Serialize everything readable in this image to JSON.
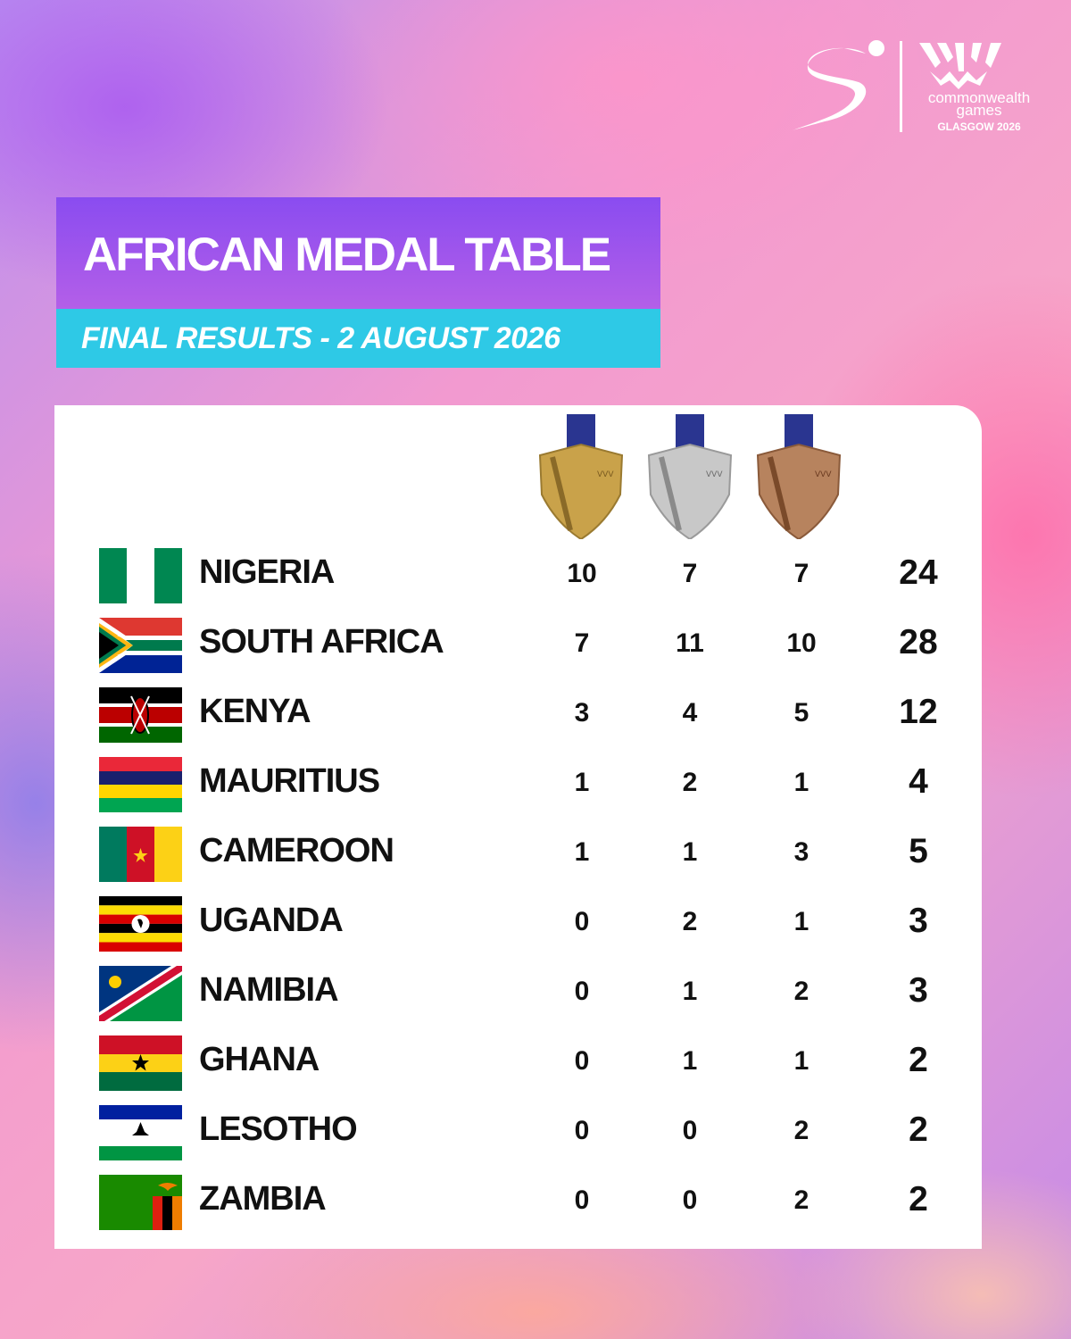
{
  "brand": {
    "line1": "commonwealth",
    "line2": "games",
    "line3": "GLASGOW 2026"
  },
  "header": {
    "title": "AFRICAN MEDAL TABLE",
    "subtitle": "FINAL RESULTS - 2 AUGUST 2026"
  },
  "medals": {
    "gold_color": "#c9a24a",
    "silver_color": "#c8c8c8",
    "bronze_color": "#b7835e"
  },
  "rows": [
    {
      "country": "NIGERIA",
      "flag": "nigeria-flag",
      "gold": "10",
      "silver": "7",
      "bronze": "7",
      "total": "24"
    },
    {
      "country": "SOUTH AFRICA",
      "flag": "south-africa-flag",
      "gold": "7",
      "silver": "11",
      "bronze": "10",
      "total": "28"
    },
    {
      "country": "KENYA",
      "flag": "kenya-flag",
      "gold": "3",
      "silver": "4",
      "bronze": "5",
      "total": "12"
    },
    {
      "country": "MAURITIUS",
      "flag": "mauritius-flag",
      "gold": "1",
      "silver": "2",
      "bronze": "1",
      "total": "4"
    },
    {
      "country": "CAMEROON",
      "flag": "cameroon-flag",
      "gold": "1",
      "silver": "1",
      "bronze": "3",
      "total": "5"
    },
    {
      "country": "UGANDA",
      "flag": "uganda-flag",
      "gold": "0",
      "silver": "2",
      "bronze": "1",
      "total": "3"
    },
    {
      "country": "NAMIBIA",
      "flag": "namibia-flag",
      "gold": "0",
      "silver": "1",
      "bronze": "2",
      "total": "3"
    },
    {
      "country": "GHANA",
      "flag": "ghana-flag",
      "gold": "0",
      "silver": "1",
      "bronze": "1",
      "total": "2"
    },
    {
      "country": "LESOTHO",
      "flag": "lesotho-flag",
      "gold": "0",
      "silver": "0",
      "bronze": "2",
      "total": "2"
    },
    {
      "country": "ZAMBIA",
      "flag": "zambia-flag",
      "gold": "0",
      "silver": "0",
      "bronze": "2",
      "total": "2"
    }
  ]
}
